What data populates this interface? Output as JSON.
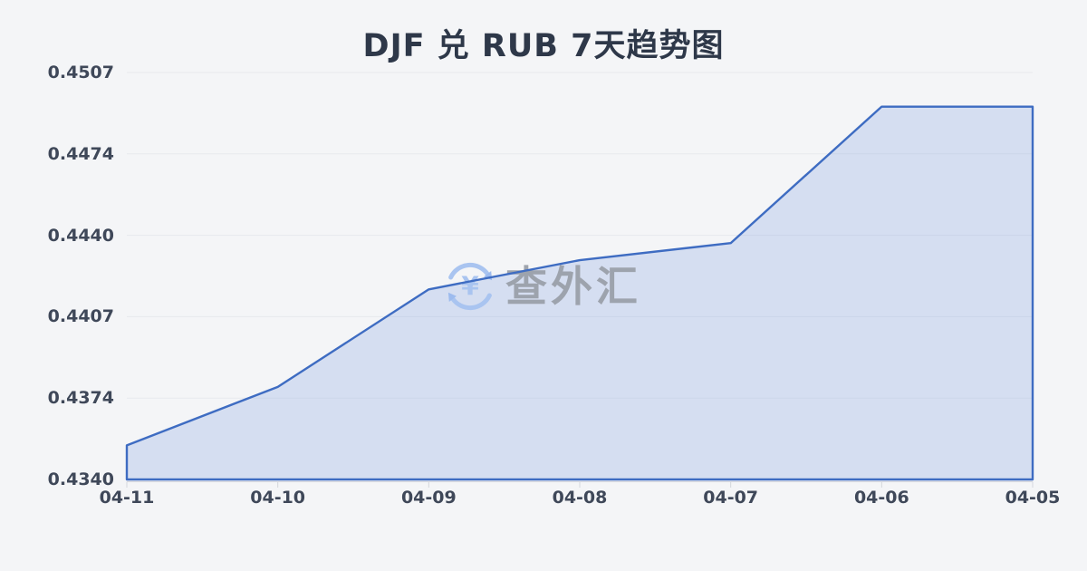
{
  "page": {
    "background_color": "#f4f5f7"
  },
  "chart_data": {
    "type": "area",
    "title": "DJF 兑 RUB 7天趋势图",
    "categories": [
      "04-11",
      "04-10",
      "04-09",
      "04-08",
      "04-07",
      "04-06",
      "04-05"
    ],
    "values": [
      0.4354,
      0.4378,
      0.4418,
      0.443,
      0.4437,
      0.4493,
      0.4493
    ],
    "ylim": [
      0.434,
      0.4507
    ],
    "yticks": [
      "0.4507",
      "0.4474",
      "0.4440",
      "0.4407",
      "0.4374",
      "0.4340"
    ],
    "xlabel": "",
    "ylabel": "",
    "grid": true,
    "legend_position": "none",
    "colors": {
      "line": "#3e6cc2",
      "fill": "rgba(116,150,222,0.24)",
      "grid": "#e7e9ed",
      "axis": "#d4d6dc",
      "title": "#2e3849",
      "tick_label": "#3f4859",
      "watermark_text": "#9ba0aa",
      "watermark_icon": "#a9c4f0",
      "background": "#f4f5f7"
    },
    "watermark": {
      "text": "查外汇",
      "icon": "currency-exchange-icon",
      "icon_symbol": "¥"
    }
  }
}
